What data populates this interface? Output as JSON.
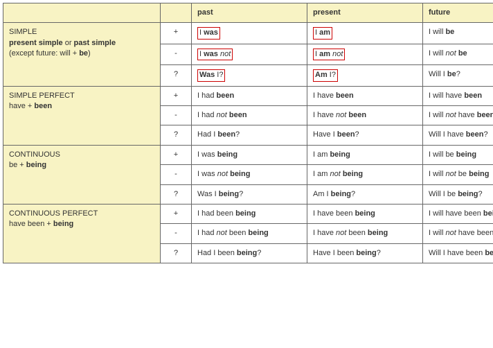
{
  "header": {
    "past": "past",
    "present": "present",
    "future": "future"
  },
  "tenses": [
    {
      "title": "SIMPLE",
      "rule_html": "<span class='b'>present simple</span> or <span class='b'>past simple</span><br>(except future: will + <span class='b'>be</span>)",
      "rows": [
        {
          "sign": "+",
          "past": {
            "html": "<span class='boxed'>I <span class='b'>was</span></span>"
          },
          "present": {
            "html": "<span class='boxed'>I <span class='b'>am</span></span>"
          },
          "future": {
            "html": "I will <span class='b'>be</span>"
          }
        },
        {
          "sign": "-",
          "past": {
            "html": "<span class='boxed'>I <span class='b'>was</span> <span class='i'>not</span></span>"
          },
          "present": {
            "html": "<span class='boxed'>I <span class='b'>am</span> <span class='i'>not</span></span>"
          },
          "future": {
            "html": "I will <span class='i'>not</span> <span class='b'>be</span>"
          }
        },
        {
          "sign": "?",
          "past": {
            "html": "<span class='boxed'><span class='b'>Was</span> I?</span>"
          },
          "present": {
            "html": "<span class='boxed'><span class='b'>Am</span> I?</span>"
          },
          "future": {
            "html": "Will I <span class='b'>be</span>?"
          }
        }
      ]
    },
    {
      "title": "SIMPLE PERFECT",
      "rule_html": "have + <span class='b'>been</span>",
      "rows": [
        {
          "sign": "+",
          "past": {
            "html": "I had <span class='b'>been</span>"
          },
          "present": {
            "html": "I have <span class='b'>been</span>"
          },
          "future": {
            "html": "I will have <span class='b'>been</span>"
          }
        },
        {
          "sign": "-",
          "past": {
            "html": "I had <span class='i'>not</span> <span class='b'>been</span>"
          },
          "present": {
            "html": "I have <span class='i'>not</span> <span class='b'>been</span>"
          },
          "future": {
            "html": "I will <span class='i'>not</span> have <span class='b'>been</span>"
          }
        },
        {
          "sign": "?",
          "past": {
            "html": "Had I <span class='b'>been</span>?"
          },
          "present": {
            "html": "Have I <span class='b'>been</span>?"
          },
          "future": {
            "html": "Will I have <span class='b'>been</span>?"
          }
        }
      ]
    },
    {
      "title": "CONTINUOUS",
      "rule_html": "be + <span class='b'>being</span>",
      "rows": [
        {
          "sign": "+",
          "past": {
            "html": "I was <span class='b'>being</span>"
          },
          "present": {
            "html": "I am <span class='b'>being</span>"
          },
          "future": {
            "html": "I will be <span class='b'>being</span>"
          }
        },
        {
          "sign": "-",
          "past": {
            "html": "I was <span class='i'>not</span> <span class='b'>being</span>"
          },
          "present": {
            "html": "I am <span class='i'>not</span> <span class='b'>being</span>"
          },
          "future": {
            "html": "I will <span class='i'>not</span> be <span class='b'>being</span>"
          }
        },
        {
          "sign": "?",
          "past": {
            "html": "Was I <span class='b'>being</span>?"
          },
          "present": {
            "html": "Am I <span class='b'>being</span>?"
          },
          "future": {
            "html": "Will I be <span class='b'>being</span>?"
          }
        }
      ]
    },
    {
      "title": "CONTINUOUS PERFECT",
      "rule_html": "have been + <span class='b'>being</span>",
      "rows": [
        {
          "sign": "+",
          "past": {
            "html": "I had been <span class='b'>being</span>"
          },
          "present": {
            "html": "I have been <span class='b'>being</span>"
          },
          "future": {
            "html": "I will have been <span class='b'>being</span>"
          }
        },
        {
          "sign": "-",
          "past": {
            "html": "I had <span class='i'>not</span> been <span class='b'>being</span>"
          },
          "present": {
            "html": "I have <span class='i'>not</span> been <span class='b'>being</span>"
          },
          "future": {
            "html": "I will <span class='i'>not</span> have been <span class='b'>being</span>"
          }
        },
        {
          "sign": "?",
          "past": {
            "html": "Had I been <span class='b'>being</span>?"
          },
          "present": {
            "html": "Have I been <span class='b'>being</span>?"
          },
          "future": {
            "html": "Will I have been <span class='b'>being</span>?"
          }
        }
      ]
    }
  ]
}
